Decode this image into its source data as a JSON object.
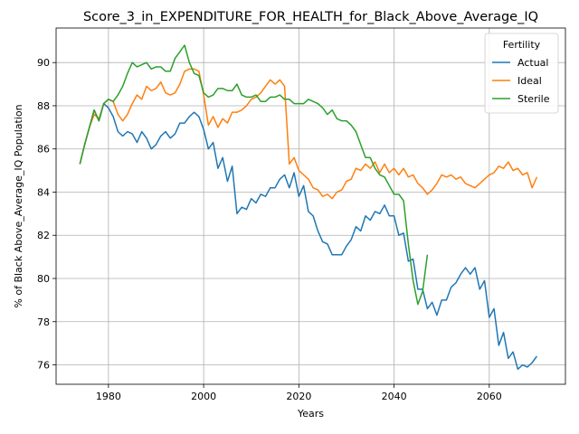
{
  "chart_data": {
    "type": "line",
    "title": "Score_3_in_EXPENDITURE_FOR_HEALTH_for_Black_Above_Average_IQ",
    "xlabel": "Years",
    "ylabel": "% of Black Above_Average_IQ Population",
    "xlim": [
      1969,
      2076
    ],
    "ylim": [
      75.1,
      91.6
    ],
    "xticks": [
      1980,
      2000,
      2020,
      2040,
      2060
    ],
    "yticks": [
      76,
      78,
      80,
      82,
      84,
      86,
      88,
      90
    ],
    "grid": true,
    "legend": {
      "title": "Fertility",
      "placement": "top-right"
    },
    "series": [
      {
        "name": "Actual",
        "color": "#1f77b4",
        "x": [
          1974,
          1975,
          1976,
          1977,
          1978,
          1979,
          1980,
          1981,
          1982,
          1983,
          1984,
          1985,
          1986,
          1987,
          1988,
          1989,
          1990,
          1991,
          1992,
          1993,
          1994,
          1995,
          1996,
          1997,
          1998,
          1999,
          2000,
          2001,
          2002,
          2003,
          2004,
          2005,
          2006,
          2007,
          2008,
          2009,
          2010,
          2011,
          2012,
          2013,
          2014,
          2015,
          2016,
          2017,
          2018,
          2019,
          2020,
          2021,
          2022,
          2023,
          2024,
          2025,
          2026,
          2027,
          2028,
          2029,
          2030,
          2031,
          2032,
          2033,
          2034,
          2035,
          2036,
          2037,
          2038,
          2039,
          2040,
          2041,
          2042,
          2043,
          2044,
          2045,
          2046,
          2047,
          2048,
          2049,
          2050,
          2051,
          2052,
          2053,
          2054,
          2055,
          2056,
          2057,
          2058,
          2059,
          2060,
          2061,
          2062,
          2063,
          2064,
          2065,
          2066,
          2067,
          2068,
          2069,
          2070
        ],
        "values": [
          85.3,
          86.2,
          87.0,
          87.8,
          87.3,
          88.1,
          87.9,
          87.5,
          86.8,
          86.6,
          86.8,
          86.7,
          86.3,
          86.8,
          86.5,
          86.0,
          86.2,
          86.6,
          86.8,
          86.5,
          86.7,
          87.2,
          87.2,
          87.5,
          87.7,
          87.5,
          86.9,
          86.0,
          86.3,
          85.1,
          85.6,
          84.5,
          85.2,
          83.0,
          83.3,
          83.2,
          83.7,
          83.5,
          83.9,
          83.8,
          84.2,
          84.2,
          84.6,
          84.8,
          84.2,
          84.9,
          83.8,
          84.3,
          83.1,
          82.9,
          82.2,
          81.7,
          81.6,
          81.1,
          81.1,
          81.1,
          81.5,
          81.8,
          82.4,
          82.2,
          82.9,
          82.7,
          83.1,
          83.0,
          83.4,
          82.9,
          82.9,
          82.0,
          82.1,
          80.8,
          80.9,
          79.5,
          79.5,
          78.6,
          78.9,
          78.3,
          79.0,
          79.0,
          79.6,
          79.8,
          80.2,
          80.5,
          80.2,
          80.5,
          79.5,
          79.9,
          78.2,
          78.6,
          76.9,
          77.5,
          76.3,
          76.6,
          75.8,
          76.0,
          75.9,
          76.1,
          76.4
        ]
      },
      {
        "name": "Ideal",
        "color": "#ff7f0e",
        "x": [
          1974,
          1975,
          1976,
          1977,
          1978,
          1979,
          1980,
          1981,
          1982,
          1983,
          1984,
          1985,
          1986,
          1987,
          1988,
          1989,
          1990,
          1991,
          1992,
          1993,
          1994,
          1995,
          1996,
          1997,
          1998,
          1999,
          2000,
          2001,
          2002,
          2003,
          2004,
          2005,
          2006,
          2007,
          2008,
          2009,
          2010,
          2011,
          2012,
          2013,
          2014,
          2015,
          2016,
          2017,
          2018,
          2019,
          2020,
          2021,
          2022,
          2023,
          2024,
          2025,
          2026,
          2027,
          2028,
          2029,
          2030,
          2031,
          2032,
          2033,
          2034,
          2035,
          2036,
          2037,
          2038,
          2039,
          2040,
          2041,
          2042,
          2043,
          2044,
          2045,
          2046,
          2047,
          2048,
          2049,
          2050,
          2051,
          2052,
          2053,
          2054,
          2055,
          2056,
          2057,
          2058,
          2059,
          2060,
          2061,
          2062,
          2063,
          2064,
          2065,
          2066,
          2067,
          2068,
          2069,
          2070
        ],
        "values": [
          85.3,
          86.2,
          87.0,
          87.6,
          87.4,
          88.1,
          88.3,
          88.2,
          87.6,
          87.3,
          87.6,
          88.1,
          88.5,
          88.3,
          88.9,
          88.7,
          88.8,
          89.1,
          88.6,
          88.5,
          88.6,
          89.0,
          89.6,
          89.7,
          89.7,
          89.6,
          88.5,
          87.1,
          87.5,
          87.0,
          87.4,
          87.2,
          87.7,
          87.7,
          87.8,
          88.0,
          88.3,
          88.4,
          88.6,
          88.9,
          89.2,
          89.0,
          89.2,
          88.9,
          85.3,
          85.6,
          85.0,
          84.8,
          84.6,
          84.2,
          84.1,
          83.8,
          83.9,
          83.7,
          84.0,
          84.1,
          84.5,
          84.6,
          85.1,
          85.0,
          85.3,
          85.1,
          85.4,
          84.9,
          85.3,
          84.9,
          85.1,
          84.8,
          85.1,
          84.7,
          84.8,
          84.4,
          84.2,
          83.9,
          84.1,
          84.4,
          84.8,
          84.7,
          84.8,
          84.6,
          84.7,
          84.4,
          84.3,
          84.2,
          84.4,
          84.6,
          84.8,
          84.9,
          85.2,
          85.1,
          85.4,
          85.0,
          85.1,
          84.8,
          84.9,
          84.2,
          84.7
        ]
      },
      {
        "name": "Sterile",
        "color": "#2ca02c",
        "x": [
          1974,
          1975,
          1976,
          1977,
          1978,
          1979,
          1980,
          1981,
          1982,
          1983,
          1984,
          1985,
          1986,
          1987,
          1988,
          1989,
          1990,
          1991,
          1992,
          1993,
          1994,
          1995,
          1996,
          1997,
          1998,
          1999,
          2000,
          2001,
          2002,
          2003,
          2004,
          2005,
          2006,
          2007,
          2008,
          2009,
          2010,
          2011,
          2012,
          2013,
          2014,
          2015,
          2016,
          2017,
          2018,
          2019,
          2020,
          2021,
          2022,
          2023,
          2024,
          2025,
          2026,
          2027,
          2028,
          2029,
          2030,
          2031,
          2032,
          2033,
          2034,
          2035,
          2036,
          2037,
          2038,
          2039,
          2040,
          2041,
          2042,
          2043,
          2044,
          2045,
          2046,
          2047
        ],
        "values": [
          85.3,
          86.2,
          87.0,
          87.8,
          87.3,
          88.1,
          88.3,
          88.2,
          88.5,
          88.9,
          89.5,
          90.0,
          89.8,
          89.9,
          90.0,
          89.7,
          89.8,
          89.8,
          89.6,
          89.6,
          90.2,
          90.5,
          90.8,
          90.0,
          89.5,
          89.4,
          88.6,
          88.4,
          88.5,
          88.8,
          88.8,
          88.7,
          88.7,
          89.0,
          88.5,
          88.4,
          88.4,
          88.5,
          88.2,
          88.2,
          88.4,
          88.4,
          88.5,
          88.3,
          88.3,
          88.1,
          88.1,
          88.1,
          88.3,
          88.2,
          88.1,
          87.9,
          87.6,
          87.8,
          87.4,
          87.3,
          87.3,
          87.1,
          86.8,
          86.2,
          85.6,
          85.6,
          85.1,
          84.8,
          84.7,
          84.3,
          83.9,
          83.9,
          83.6,
          81.6,
          79.9,
          78.8,
          79.4,
          81.1
        ]
      }
    ]
  }
}
